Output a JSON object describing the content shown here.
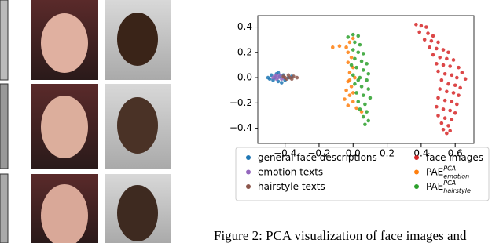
{
  "chart_data": {
    "type": "scatter",
    "caption": "Figure 2: PCA visualization of face images and",
    "xlim": [
      -0.56,
      0.71
    ],
    "ylim": [
      -0.52,
      0.49
    ],
    "xticks": [
      {
        "value": -0.4,
        "label": "−0.4"
      },
      {
        "value": -0.2,
        "label": "−0.2"
      },
      {
        "value": 0,
        "label": "0.0"
      },
      0.2,
      0.4,
      0.6
    ],
    "yticks": [
      {
        "value": -0.4,
        "label": "−0.4"
      },
      {
        "value": -0.2,
        "label": "−0.2"
      },
      {
        "value": 0,
        "label": "0.0"
      },
      0.2,
      0.4
    ],
    "grid": false,
    "series": [
      {
        "name": "general face descriptions",
        "color": "#1f77b4",
        "x": [
          -0.5,
          -0.48,
          -0.47,
          -0.45,
          -0.44,
          -0.43,
          -0.46,
          -0.41,
          -0.4,
          -0.38,
          -0.36,
          -0.49,
          -0.42,
          -0.44
        ],
        "values": [
          0.0,
          0.02,
          -0.02,
          0.03,
          -0.03,
          0.01,
          0.0,
          0.02,
          -0.02,
          0.0,
          0.01,
          -0.01,
          -0.04,
          0.04
        ]
      },
      {
        "name": "emotion texts",
        "color": "#9467bd",
        "x": [
          -0.47,
          -0.46,
          -0.45,
          -0.44,
          -0.43,
          -0.42,
          -0.45,
          -0.41
        ],
        "values": [
          0.0,
          0.01,
          -0.01,
          0.0,
          0.02,
          -0.01,
          0.02,
          0.0
        ]
      },
      {
        "name": "hairstyle texts",
        "color": "#8c564b",
        "x": [
          -0.41,
          -0.39,
          -0.38,
          -0.37,
          -0.36,
          -0.35,
          -0.33,
          -0.4
        ],
        "values": [
          0.01,
          -0.01,
          0.02,
          0.0,
          -0.01,
          0.01,
          0.0,
          0.0
        ]
      },
      {
        "name": "face images",
        "color": "#d62728",
        "x": [
          0.37,
          0.4,
          0.43,
          0.39,
          0.44,
          0.47,
          0.42,
          0.46,
          0.5,
          0.45,
          0.49,
          0.53,
          0.56,
          0.47,
          0.51,
          0.55,
          0.59,
          0.49,
          0.53,
          0.57,
          0.62,
          0.64,
          0.5,
          0.54,
          0.58,
          0.61,
          0.66,
          0.52,
          0.56,
          0.6,
          0.63,
          0.51,
          0.55,
          0.59,
          0.62,
          0.5,
          0.54,
          0.58,
          0.61,
          0.49,
          0.53,
          0.57,
          0.6,
          0.5,
          0.54,
          0.58,
          0.52,
          0.56,
          0.53,
          0.57,
          0.55
        ],
        "values": [
          0.42,
          0.41,
          0.4,
          0.36,
          0.35,
          0.33,
          0.3,
          0.29,
          0.28,
          0.24,
          0.23,
          0.22,
          0.2,
          0.18,
          0.16,
          0.15,
          0.14,
          0.11,
          0.1,
          0.09,
          0.08,
          0.04,
          0.05,
          0.03,
          0.02,
          0.0,
          -0.01,
          -0.02,
          -0.05,
          -0.06,
          -0.08,
          -0.09,
          -0.11,
          -0.12,
          -0.14,
          -0.16,
          -0.18,
          -0.19,
          -0.21,
          -0.23,
          -0.25,
          -0.26,
          -0.28,
          -0.3,
          -0.32,
          -0.33,
          -0.36,
          -0.38,
          -0.41,
          -0.42,
          -0.44
        ]
      },
      {
        "name": "PAE",
        "name_sup": "PCA",
        "name_sub": "emotion",
        "color": "#ff7f0e",
        "x": [
          -0.12,
          -0.08,
          -0.04,
          -0.02,
          0.0,
          -0.03,
          -0.01,
          -0.03,
          0.0,
          -0.02,
          0.01,
          -0.03,
          -0.01,
          -0.04,
          -0.02,
          -0.05,
          0.0,
          -0.03,
          0.02,
          0.05,
          -0.02,
          0.0
        ],
        "values": [
          0.24,
          0.25,
          0.24,
          0.28,
          0.31,
          0.2,
          0.16,
          0.12,
          0.08,
          0.04,
          0.0,
          -0.03,
          -0.07,
          -0.1,
          -0.14,
          -0.17,
          -0.19,
          -0.22,
          -0.24,
          -0.27,
          -0.02,
          -0.12
        ]
      },
      {
        "name": "PAE",
        "name_sup": "PCA",
        "name_sub": "hairstyle",
        "color": "#2ca02c",
        "x": [
          -0.03,
          0.0,
          0.03,
          0.01,
          0.04,
          0.0,
          0.03,
          0.06,
          0.01,
          0.05,
          0.08,
          0.02,
          0.06,
          0.09,
          0.0,
          0.04,
          0.08,
          0.01,
          0.05,
          0.09,
          0.02,
          0.06,
          0.1,
          0.03,
          0.07,
          0.04,
          0.08,
          0.06,
          0.09,
          0.07,
          -0.01,
          0.03
        ],
        "values": [
          0.32,
          0.34,
          0.33,
          0.28,
          0.26,
          0.22,
          0.2,
          0.19,
          0.15,
          0.13,
          0.11,
          0.08,
          0.06,
          0.03,
          0.02,
          0.0,
          -0.02,
          -0.05,
          -0.07,
          -0.09,
          -0.12,
          -0.14,
          -0.16,
          -0.19,
          -0.21,
          -0.25,
          -0.27,
          -0.31,
          -0.34,
          -0.37,
          0.1,
          -0.02
        ]
      }
    ]
  }
}
